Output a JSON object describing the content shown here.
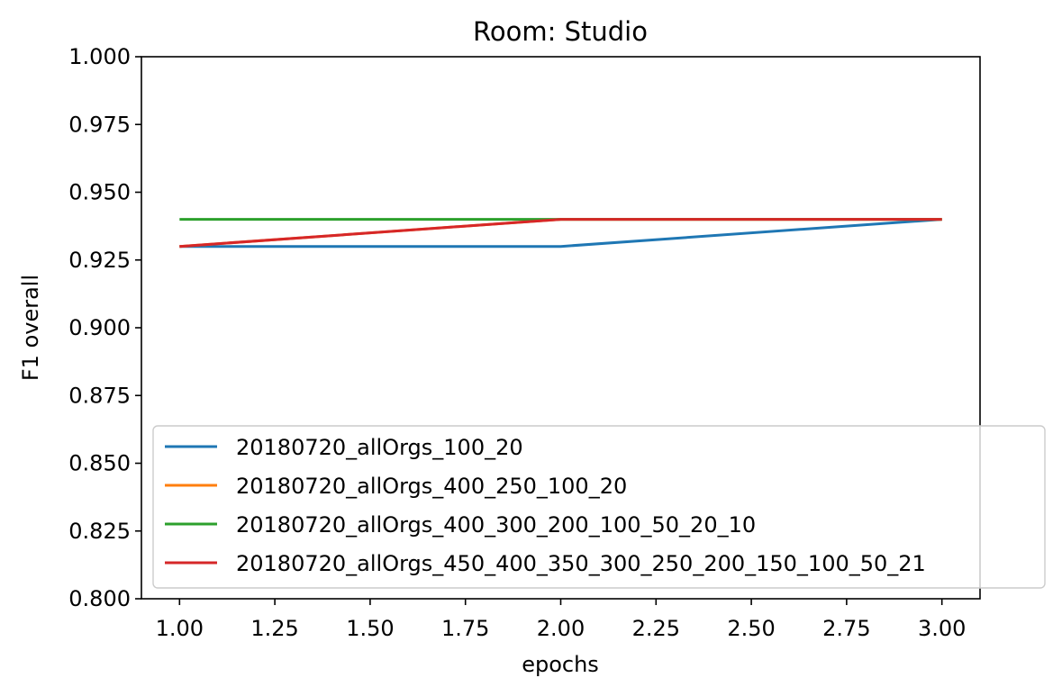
{
  "chart_data": {
    "type": "line",
    "title": "Room: Studio",
    "xlabel": "epochs",
    "ylabel": "F1 overall",
    "xlim": [
      0.9,
      3.1
    ],
    "ylim": [
      0.8,
      1.0
    ],
    "xticks": [
      "1.00",
      "1.25",
      "1.50",
      "1.75",
      "2.00",
      "2.25",
      "2.50",
      "2.75",
      "3.00"
    ],
    "yticks": [
      "0.800",
      "0.825",
      "0.850",
      "0.875",
      "0.900",
      "0.925",
      "0.950",
      "0.975",
      "1.000"
    ],
    "grid": false,
    "legend_position": "lower-right",
    "x": [
      1,
      2,
      3
    ],
    "series": [
      {
        "name": "20180720_allOrgs_100_20",
        "color": "#1f77b4",
        "values": [
          0.93,
          0.93,
          0.94
        ]
      },
      {
        "name": "20180720_allOrgs_400_250_100_20",
        "color": "#ff7f0e",
        "values": [
          0.93,
          0.94,
          0.94
        ]
      },
      {
        "name": "20180720_allOrgs_400_300_200_100_50_20_10",
        "color": "#2ca02c",
        "values": [
          0.94,
          0.94,
          0.94
        ]
      },
      {
        "name": "20180720_allOrgs_450_400_350_300_250_200_150_100_50_21",
        "color": "#d62728",
        "values": [
          0.93,
          0.94,
          0.94
        ]
      }
    ]
  }
}
